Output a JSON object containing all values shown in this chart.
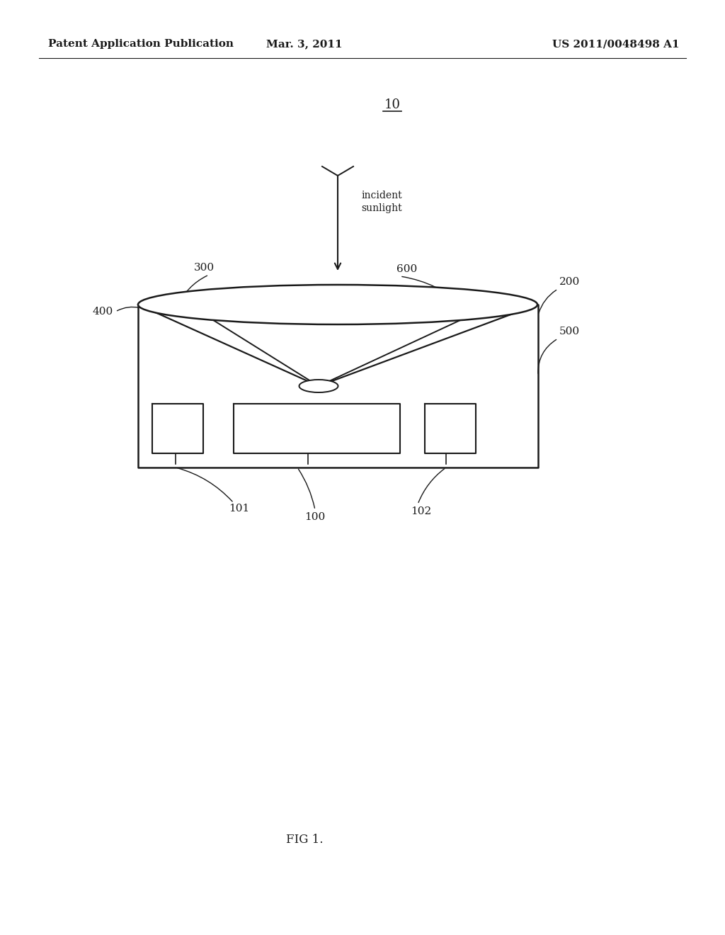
{
  "bg_color": "#ffffff",
  "line_color": "#1a1a1a",
  "text_color": "#1a1a1a",
  "header_left": "Patent Application Publication",
  "header_center": "Mar. 3, 2011",
  "header_right": "US 2011/0048498 A1",
  "fig_label": "FIG 1.",
  "diagram_label": "10",
  "figsize": [
    10.24,
    13.2
  ],
  "dpi": 100
}
